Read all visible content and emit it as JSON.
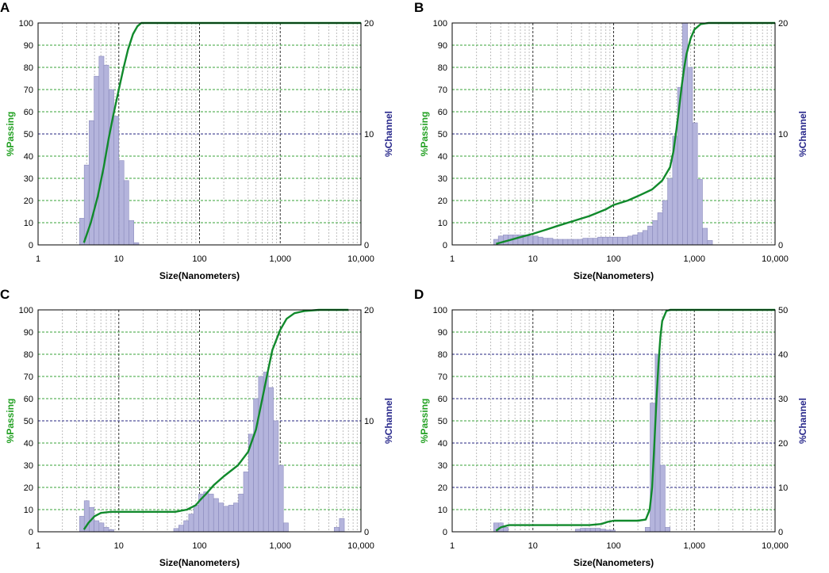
{
  "colors": {
    "bar_fill": "#b4b4dc",
    "bar_stroke": "#8c8cbe",
    "curve": "#118a2c",
    "grid_green": "#3aa33a",
    "grid_navy": "#262680",
    "grid_minor": "#bdbdbd",
    "passing_label": "#22a022",
    "channel_label": "#26268a"
  },
  "chart_data": [
    {
      "type": "bar",
      "panel_label": "A",
      "xlabel": "Size(Nanometers)",
      "ylabel_left": "%Passing",
      "ylabel_right": "%Channel",
      "x_scale": "log",
      "xlim": [
        1,
        10000
      ],
      "x_ticks": [
        "1",
        "10",
        "100",
        "1,000",
        "10,000"
      ],
      "y_left_lim": [
        0,
        100
      ],
      "y_left_ticks": [
        "0",
        "10",
        "20",
        "30",
        "40",
        "50",
        "60",
        "70",
        "80",
        "90",
        "100"
      ],
      "y_right_lim": [
        0,
        20
      ],
      "y_right_ticks": [
        "0",
        "10",
        "20"
      ],
      "channel_bars": {
        "x": [
          3.5,
          4.0,
          4.6,
          5.3,
          6.1,
          7.0,
          8.1,
          9.3,
          10.8,
          12.4,
          14.3,
          16.5
        ],
        "values": [
          2.4,
          7.2,
          11.2,
          15.2,
          17.0,
          16.2,
          14.0,
          11.6,
          7.6,
          5.8,
          2.2,
          0.2
        ]
      },
      "passing_curve": {
        "x": [
          3.7,
          4.5,
          5.5,
          6.5,
          7.5,
          8.5,
          10,
          11.5,
          13,
          15,
          17,
          19,
          10000
        ],
        "values": [
          1,
          10,
          22,
          35,
          48,
          58,
          70,
          80,
          88,
          95,
          98.5,
          100,
          100
        ]
      }
    },
    {
      "type": "bar",
      "panel_label": "B",
      "xlabel": "Size(Nanometers)",
      "ylabel_left": "%Passing",
      "ylabel_right": "%Channel",
      "x_scale": "log",
      "xlim": [
        1,
        10000
      ],
      "x_ticks": [
        "1",
        "10",
        "100",
        "1,000",
        "10,000"
      ],
      "y_left_lim": [
        0,
        100
      ],
      "y_left_ticks": [
        "0",
        "10",
        "20",
        "30",
        "40",
        "50",
        "60",
        "70",
        "80",
        "90",
        "100"
      ],
      "y_right_lim": [
        0,
        20
      ],
      "y_right_ticks": [
        "0",
        "10",
        "20"
      ],
      "channel_bars": {
        "x": [
          3.5,
          4.0,
          4.6,
          5.3,
          6.1,
          7.0,
          8.1,
          9.3,
          10.8,
          12.4,
          14.3,
          16.5,
          19.0,
          21.9,
          25.3,
          29.1,
          33.6,
          38.7,
          44.6,
          51.4,
          59.3,
          68.3,
          78.8,
          90.8,
          104.7,
          120.7,
          139.1,
          160.4,
          184.9,
          213.2,
          245.8,
          283.4,
          326.7,
          376.6,
          434.2,
          500.6,
          577.1,
          665.4,
          767.1,
          884.4,
          1019.6,
          1175.5,
          1355.2,
          1562.4
        ],
        "values": [
          0.5,
          0.8,
          0.9,
          0.9,
          0.9,
          0.9,
          0.9,
          0.8,
          0.8,
          0.7,
          0.6,
          0.6,
          0.5,
          0.5,
          0.5,
          0.5,
          0.5,
          0.5,
          0.6,
          0.6,
          0.6,
          0.7,
          0.7,
          0.7,
          0.7,
          0.7,
          0.7,
          0.8,
          0.9,
          1.1,
          1.3,
          1.7,
          2.2,
          2.9,
          4.0,
          6.0,
          9.8,
          14.2,
          20.0,
          16.0,
          11.0,
          5.9,
          1.5,
          0.4
        ]
      },
      "passing_curve": {
        "x": [
          3.5,
          5,
          7,
          10,
          15,
          20,
          30,
          50,
          80,
          100,
          150,
          200,
          300,
          400,
          500,
          550,
          600,
          650,
          700,
          750,
          800,
          900,
          1000,
          1200,
          1500,
          10000
        ],
        "values": [
          0.5,
          2,
          3.5,
          5,
          7,
          8.5,
          10.5,
          13,
          16,
          18,
          20,
          22,
          25,
          29,
          35,
          42,
          52,
          62,
          72,
          80,
          86,
          93,
          97,
          99.5,
          100,
          100
        ]
      }
    },
    {
      "type": "bar",
      "panel_label": "C",
      "xlabel": "Size(Nanometers)",
      "ylabel_left": "%Passing",
      "ylabel_right": "%Channel",
      "x_scale": "log",
      "xlim": [
        1,
        10000
      ],
      "x_ticks": [
        "1",
        "10",
        "100",
        "1,000",
        "10,000"
      ],
      "y_left_lim": [
        0,
        100
      ],
      "y_left_ticks": [
        "0",
        "10",
        "20",
        "30",
        "40",
        "50",
        "60",
        "70",
        "80",
        "90",
        "100"
      ],
      "y_right_lim": [
        0,
        20
      ],
      "y_right_ticks": [
        "0",
        "10",
        "20"
      ],
      "channel_bars": {
        "x": [
          3.5,
          4.0,
          4.6,
          5.3,
          6.1,
          7.0,
          8.1,
          51.4,
          59.3,
          68.3,
          78.8,
          90.8,
          104.7,
          120.7,
          139.1,
          160.4,
          184.9,
          213.2,
          245.8,
          283.4,
          326.7,
          376.6,
          434.2,
          500.6,
          577.1,
          665.4,
          767.1,
          884.4,
          1019.6,
          1175.5,
          5000,
          5800
        ],
        "values": [
          1.4,
          2.8,
          2.2,
          1.0,
          0.8,
          0.4,
          0.2,
          0.3,
          0.6,
          1.0,
          1.6,
          2.4,
          3.4,
          3.6,
          3.4,
          3.0,
          2.6,
          2.3,
          2.4,
          2.6,
          3.4,
          5.4,
          8.8,
          12.0,
          14.0,
          14.4,
          13.0,
          10.0,
          6.0,
          0.8,
          0.4,
          1.2
        ]
      },
      "passing_curve": {
        "x": [
          3.7,
          4.2,
          5,
          6,
          8,
          10,
          20,
          30,
          50,
          70,
          90,
          100,
          120,
          150,
          200,
          300,
          400,
          500,
          600,
          700,
          800,
          1000,
          1200,
          1500,
          2000,
          3000,
          7000
        ],
        "values": [
          1,
          4,
          7,
          8.5,
          9,
          9,
          9,
          9,
          9,
          10,
          12,
          14,
          17,
          21,
          25,
          30,
          36,
          46,
          60,
          72,
          82,
          91,
          96,
          98.5,
          99.5,
          100,
          100
        ]
      }
    },
    {
      "type": "bar",
      "panel_label": "D",
      "xlabel": "Size(Nanometers)",
      "ylabel_left": "%Passing",
      "ylabel_right": "%Channel",
      "x_scale": "log",
      "xlim": [
        1,
        10000
      ],
      "x_ticks": [
        "1",
        "10",
        "100",
        "1,000",
        "10,000"
      ],
      "y_left_lim": [
        0,
        100
      ],
      "y_left_ticks": [
        "0",
        "10",
        "20",
        "30",
        "40",
        "50",
        "60",
        "70",
        "80",
        "90",
        "100"
      ],
      "y_right_lim": [
        0,
        50
      ],
      "y_right_ticks": [
        "0",
        "10",
        "20",
        "30",
        "40",
        "50"
      ],
      "channel_bars": {
        "x": [
          3.5,
          4.0,
          4.6,
          36.0,
          41.5,
          47.9,
          55.2,
          63.7,
          73.4,
          84.6,
          97.5,
          264,
          304,
          351,
          405,
          467
        ],
        "values": [
          2.0,
          2.0,
          1.0,
          0.6,
          0.8,
          0.8,
          0.8,
          0.8,
          0.6,
          0.4,
          0.4,
          1.0,
          29.0,
          40.0,
          15.0,
          1.0
        ]
      },
      "passing_curve": {
        "x": [
          3.5,
          4,
          5,
          7,
          10,
          20,
          30,
          50,
          70,
          85,
          100,
          150,
          200,
          250,
          280,
          300,
          320,
          340,
          360,
          380,
          400,
          450,
          500,
          10000
        ],
        "values": [
          0.5,
          2,
          3,
          3,
          3,
          3,
          3,
          3,
          3.5,
          4.5,
          5,
          5,
          5,
          5.5,
          10,
          20,
          40,
          60,
          76,
          88,
          95,
          99.5,
          100,
          100
        ]
      }
    }
  ]
}
